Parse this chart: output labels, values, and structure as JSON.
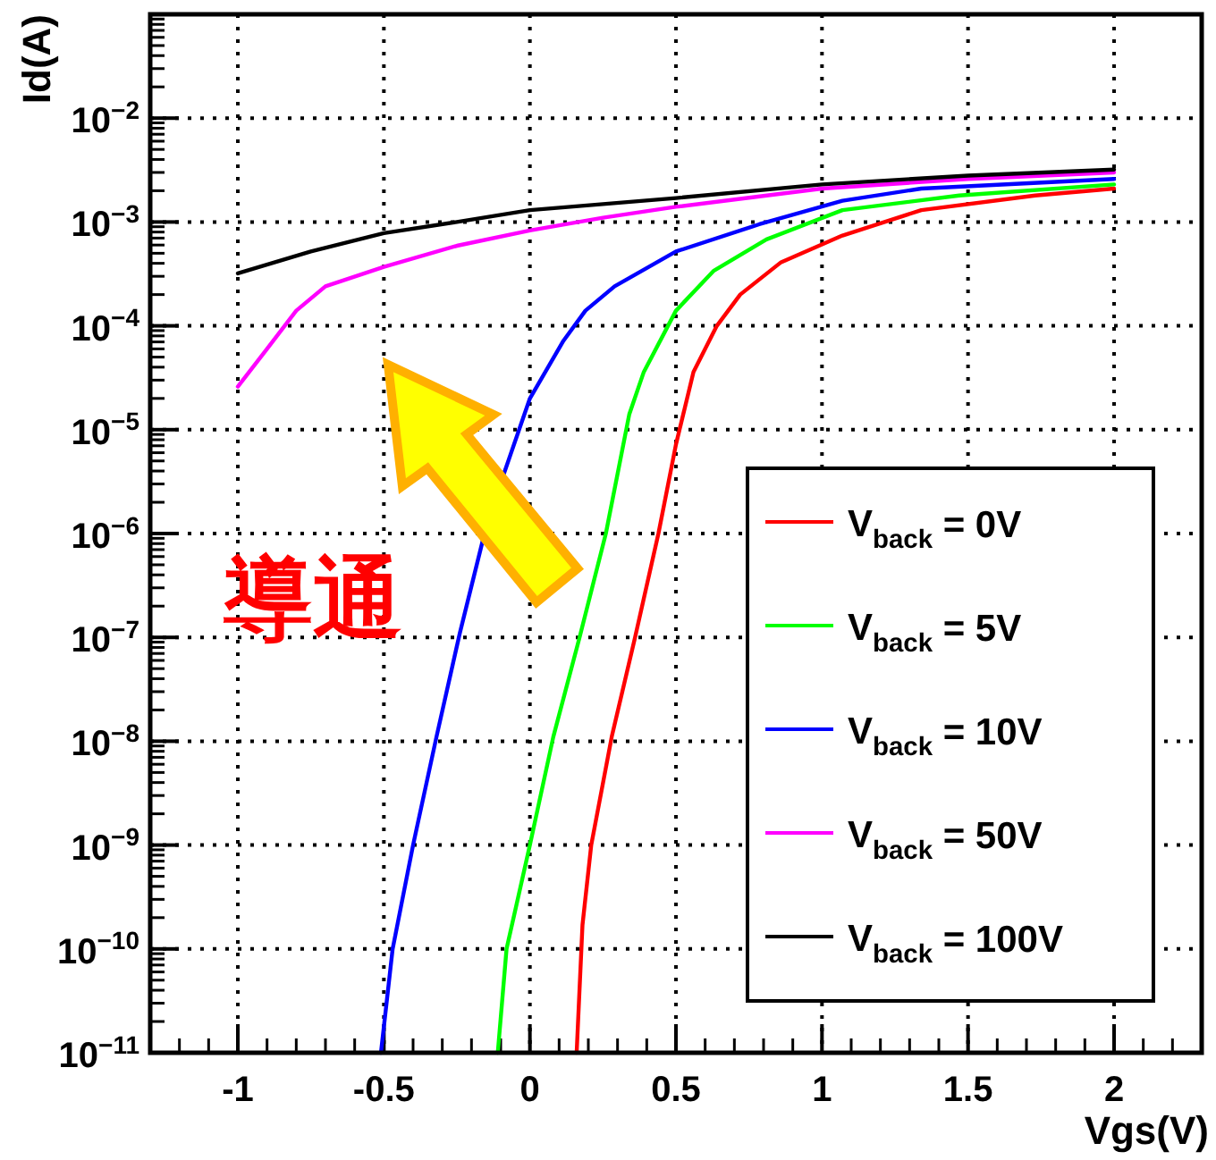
{
  "chart_data": {
    "type": "line",
    "xlabel": "Vgs(V)",
    "ylabel": "Id(A)",
    "log": "y",
    "grid": true,
    "legend": "right",
    "marker": "none",
    "line_style": "solid",
    "xlim": [
      -1.3,
      2.3
    ],
    "ylim": [
      1e-11,
      0.1
    ],
    "xticks": [
      -1,
      -0.5,
      0,
      0.5,
      1,
      1.5,
      2
    ],
    "yticks": [
      {
        "value": 1e-11,
        "label": "10$^{−11}$"
      },
      {
        "value": 1e-10,
        "label": "10$^{−10}$"
      },
      {
        "value": 1e-09,
        "label": "10$^{−9}$"
      },
      {
        "value": 1e-08,
        "label": "10$^{−8}$"
      },
      {
        "value": 1e-07,
        "label": "10$^{−7}$"
      },
      {
        "value": 1e-06,
        "label": "10$^{−6}$"
      },
      {
        "value": 1e-05,
        "label": "10$^{−5}$"
      },
      {
        "value": 0.0001,
        "label": "10$^{−4}$"
      },
      {
        "value": 0.001,
        "label": "10$^{−3}$"
      },
      {
        "value": 0.01,
        "label": "10$^{−2}$"
      }
    ],
    "annotations": [
      "導通"
    ],
    "series": [
      {
        "name": "V$_{back}$ = 0V",
        "color": "#ff0000",
        "x": [
          0.16,
          0.18,
          0.21,
          0.28,
          0.36,
          0.44,
          0.5,
          0.56,
          0.64,
          0.72,
          0.86,
          1.07,
          1.34,
          1.73,
          2
        ],
        "values": [
          1e-11,
          1.7e-10,
          1e-09,
          1.1e-08,
          1e-07,
          1e-06,
          7.2e-06,
          3.6e-05,
          0.0001,
          0.0002,
          0.00041,
          0.00074,
          0.0013,
          0.0018,
          0.0021
        ]
      },
      {
        "name": "V$_{back}$ = 5V",
        "color": "#00ff00",
        "x": [
          -0.11,
          -0.08,
          0,
          0.08,
          0.17,
          0.26,
          0.34,
          0.39,
          0.5,
          0.63,
          0.81,
          1.07,
          1.47,
          2
        ],
        "values": [
          1e-11,
          1e-10,
          1e-09,
          1.1e-08,
          1e-07,
          1e-06,
          1.4e-05,
          3.6e-05,
          0.00014,
          0.00034,
          0.00068,
          0.0013,
          0.0018,
          0.0023
        ]
      },
      {
        "name": "V$_{back}$ = 10V",
        "color": "#0000ff",
        "x": [
          -0.51,
          -0.47,
          -0.4,
          -0.32,
          -0.24,
          -0.16,
          -0.09,
          0,
          0.115,
          0.19,
          0.29,
          0.5,
          0.785,
          1.07,
          1.34,
          2
        ],
        "values": [
          1e-11,
          1e-10,
          1e-09,
          1.1e-08,
          1.1e-07,
          8.9e-07,
          3.7e-06,
          2e-05,
          7.2e-05,
          0.00014,
          0.00024,
          0.00052,
          0.00095,
          0.0016,
          0.0021,
          0.0026
        ]
      },
      {
        "name": "V$_{back}$ = 50V",
        "color": "#ff00ff",
        "x": [
          -1,
          -0.9,
          -0.8,
          -0.7,
          -0.5,
          -0.25,
          0,
          0.25,
          0.5,
          1,
          1.5,
          2
        ],
        "values": [
          2.6e-05,
          6e-05,
          0.00014,
          0.00024,
          0.00037,
          0.00059,
          0.00083,
          0.0011,
          0.0014,
          0.0021,
          0.0026,
          0.003
        ]
      },
      {
        "name": "V$_{back}$ = 100V",
        "color": "#000000",
        "x": [
          -1,
          -0.75,
          -0.5,
          -0.25,
          0,
          0.5,
          1,
          1.5,
          2
        ],
        "values": [
          0.00032,
          0.00052,
          0.00078,
          0.001,
          0.0013,
          0.0017,
          0.0023,
          0.0028,
          0.0032
        ]
      }
    ]
  }
}
